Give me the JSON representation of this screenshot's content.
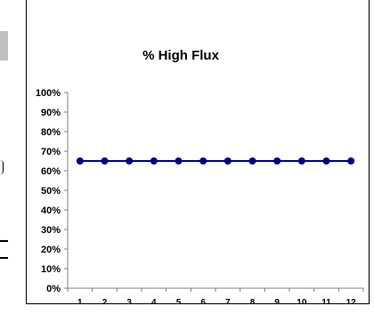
{
  "chart_data": {
    "type": "line",
    "title": "% High Flux",
    "xlabel": "",
    "ylabel": "",
    "x": [
      1,
      2,
      3,
      4,
      5,
      6,
      7,
      8,
      9,
      10,
      11,
      12
    ],
    "series": [
      {
        "values": [
          65,
          65,
          65,
          65,
          65,
          65,
          65,
          65,
          65,
          65,
          65,
          65
        ]
      }
    ],
    "ylim": [
      0,
      100
    ],
    "yticks": [
      "0%",
      "10%",
      "20%",
      "30%",
      "40%",
      "50%",
      "60%",
      "70%",
      "80%",
      "90%",
      "100%"
    ],
    "xticks": [
      "1",
      "2",
      "3",
      "4",
      "5",
      "6",
      "7",
      "8",
      "9",
      "10",
      "11",
      "12"
    ],
    "grid": false,
    "legend": "none",
    "colors": {
      "line": "#000080",
      "marker": "#000080"
    }
  }
}
